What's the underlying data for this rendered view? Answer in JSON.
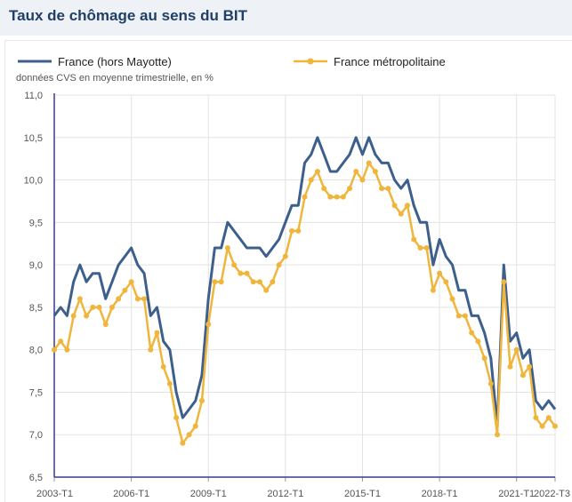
{
  "header": {
    "title": "Taux de chômage au sens du BIT"
  },
  "chart_data": {
    "type": "line",
    "title": "Taux de chômage au sens du BIT",
    "subtitle": "données CVS en moyenne trimestrielle, en %",
    "xlabel": "",
    "ylabel": "",
    "ylim": [
      6.5,
      11.0
    ],
    "yticks": [
      "6,5",
      "7,0",
      "7,5",
      "8,0",
      "8,5",
      "9,0",
      "9,5",
      "10,0",
      "10,5",
      "11,0"
    ],
    "ytick_values": [
      6.5,
      7.0,
      7.5,
      8.0,
      8.5,
      9.0,
      9.5,
      10.0,
      10.5,
      11.0
    ],
    "xtick_labels": [
      "2003-T1",
      "2006-T1",
      "2009-T1",
      "2012-T1",
      "2015-T1",
      "2018-T1",
      "2021-T1",
      "2022-T3"
    ],
    "xtick_indices": [
      0,
      12,
      24,
      36,
      48,
      60,
      72,
      78
    ],
    "first_period": "2003-T1",
    "last_period": "2022-T3",
    "grid": true,
    "legend_position": "top",
    "series": [
      {
        "name": "France (hors Mayotte)",
        "color": "#3d5f8c",
        "markers": false,
        "values": [
          8.4,
          8.5,
          8.4,
          8.8,
          9.0,
          8.8,
          8.9,
          8.9,
          8.6,
          8.8,
          9.0,
          9.1,
          9.2,
          9.0,
          8.9,
          8.4,
          8.5,
          8.1,
          8.0,
          7.5,
          7.2,
          7.3,
          7.4,
          7.7,
          8.6,
          9.2,
          9.2,
          9.5,
          9.4,
          9.3,
          9.2,
          9.2,
          9.2,
          9.1,
          9.2,
          9.3,
          9.5,
          9.7,
          9.7,
          10.2,
          10.3,
          10.5,
          10.3,
          10.1,
          10.1,
          10.2,
          10.3,
          10.5,
          10.3,
          10.5,
          10.3,
          10.2,
          10.2,
          10.0,
          9.9,
          10.0,
          9.7,
          9.5,
          9.5,
          9.0,
          9.3,
          9.1,
          9.0,
          8.7,
          8.7,
          8.4,
          8.4,
          8.2,
          7.9,
          7.1,
          9.0,
          8.1,
          8.2,
          7.9,
          8.0,
          7.4,
          7.3,
          7.4,
          7.3
        ]
      },
      {
        "name": "France métropolitaine",
        "color": "#f0b53b",
        "markers": true,
        "values": [
          8.0,
          8.1,
          8.0,
          8.4,
          8.6,
          8.4,
          8.5,
          8.5,
          8.3,
          8.5,
          8.6,
          8.7,
          8.8,
          8.6,
          8.6,
          8.0,
          8.2,
          7.8,
          7.6,
          7.2,
          6.9,
          7.0,
          7.1,
          7.4,
          8.3,
          8.8,
          8.8,
          9.2,
          9.0,
          8.9,
          8.9,
          8.8,
          8.8,
          8.7,
          8.8,
          9.0,
          9.1,
          9.4,
          9.4,
          9.8,
          10.0,
          10.1,
          9.9,
          9.8,
          9.8,
          9.8,
          9.9,
          10.1,
          10.0,
          10.2,
          10.1,
          9.9,
          9.9,
          9.7,
          9.6,
          9.7,
          9.3,
          9.2,
          9.2,
          8.7,
          8.9,
          8.8,
          8.6,
          8.4,
          8.4,
          8.2,
          8.1,
          7.9,
          7.6,
          7.0,
          8.8,
          7.8,
          8.0,
          7.7,
          7.8,
          7.2,
          7.1,
          7.2,
          7.1
        ]
      }
    ]
  }
}
